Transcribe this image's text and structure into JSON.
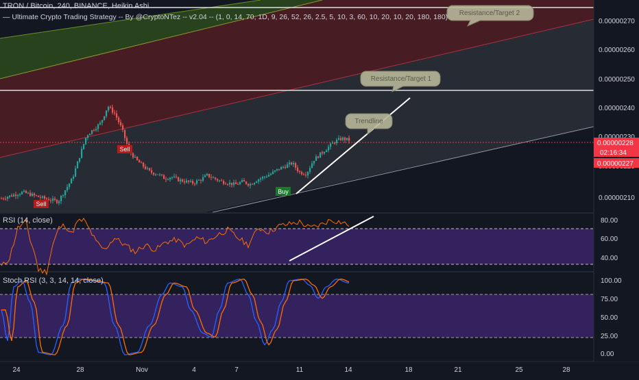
{
  "chart_header": {
    "symbol": "TRON / Bitcoin, 240, BINANCE, Heikin Ashi",
    "strategy": "— Ultimate Crypto Trading Strategy -- By @CryptoNTez -- v2.04 -- (1, 0, 14, 70, 1D, 9, 26, 52, 26, 2.5, 5, 10, 3, 60, 10, 20, 10, 20, 180, 180)"
  },
  "colors": {
    "background": "#131722",
    "up_candle": "#26a69a",
    "down_candle": "#ef5350",
    "rsi_line": "#ff6d00",
    "stoch_k": "#2962ff",
    "stoch_d": "#ff6d00",
    "band_purple": "#4a2a7a",
    "price_badge": "#f23645"
  },
  "annotations": {
    "target2": "Resistance/Target 2",
    "target1": "Resistance/Target 1",
    "trendline": "Trendline",
    "signals": [
      {
        "label": "Sell",
        "type": "sell"
      },
      {
        "label": "Sell",
        "type": "sell"
      },
      {
        "label": "Buy",
        "type": "buy"
      }
    ]
  },
  "chart_data": [
    {
      "type": "candlestick",
      "title": "TRON / Bitcoin, 240, BINANCE, Heikin Ashi",
      "ylim": [
        2.05e-06,
        2.74e-06
      ],
      "ticks": [
        "0.00000270",
        "0.00000260",
        "0.00000250",
        "0.00000240",
        "0.00000230",
        "0.00000220",
        "0.00000210"
      ],
      "current_price": "0.00000228",
      "countdown": "02:16:34",
      "second_price": "0.00000227",
      "x_ticks": [
        "24",
        "28",
        "Nov",
        "4",
        "7",
        "11",
        "14",
        "18",
        "21",
        "25",
        "28"
      ],
      "resistance_levels": [
        2.725e-06,
        2.458e-06
      ],
      "close_approx": [
        [
          0,
          2.095e-06
        ],
        [
          3,
          2.115e-06
        ],
        [
          6,
          2.095e-06
        ],
        [
          8,
          2.085e-06
        ],
        [
          10,
          2.16e-06
        ],
        [
          12,
          2.3e-06
        ],
        [
          14,
          2.34e-06
        ],
        [
          15,
          2.395e-06
        ],
        [
          16,
          2.37e-06
        ],
        [
          17,
          2.32e-06
        ],
        [
          18,
          2.25e-06
        ],
        [
          19,
          2.22e-06
        ],
        [
          20,
          2.2e-06
        ],
        [
          21,
          2.18e-06
        ],
        [
          22,
          2.175e-06
        ],
        [
          23,
          2.16e-06
        ],
        [
          24,
          2.165e-06
        ],
        [
          25,
          2.155e-06
        ],
        [
          26,
          2.15e-06
        ],
        [
          27,
          2.145e-06
        ],
        [
          28,
          2.155e-06
        ],
        [
          29,
          2.17e-06
        ],
        [
          30,
          2.16e-06
        ],
        [
          31,
          2.15e-06
        ],
        [
          32,
          2.145e-06
        ],
        [
          33,
          2.14e-06
        ],
        [
          34,
          2.15e-06
        ],
        [
          35,
          2.14e-06
        ],
        [
          36,
          2.155e-06
        ],
        [
          37,
          2.165e-06
        ],
        [
          38,
          2.175e-06
        ],
        [
          39,
          2.19e-06
        ],
        [
          40,
          2.2e-06
        ],
        [
          41,
          2.21e-06
        ],
        [
          42,
          2.18e-06
        ],
        [
          43,
          2.175e-06
        ],
        [
          44,
          2.22e-06
        ],
        [
          45,
          2.24e-06
        ],
        [
          46,
          2.26e-06
        ],
        [
          47,
          2.28e-06
        ],
        [
          48,
          2.29e-06
        ],
        [
          49,
          2.285e-06
        ]
      ]
    },
    {
      "type": "line",
      "title": "RSI (14, close)",
      "ylim": [
        30,
        85
      ],
      "ticks": [
        "80.00",
        "60.00",
        "40.00"
      ],
      "levels": [
        70,
        30
      ]
    },
    {
      "type": "line",
      "title": "Stoch RSI (3, 3, 14, 14, close)",
      "ylim": [
        -5,
        105
      ],
      "ticks": [
        "100.00",
        "75.00",
        "50.00",
        "25.00",
        "0.00"
      ],
      "levels": [
        80,
        20
      ],
      "series": [
        {
          "values_role": "K"
        },
        {
          "values_role": "D"
        }
      ]
    }
  ]
}
